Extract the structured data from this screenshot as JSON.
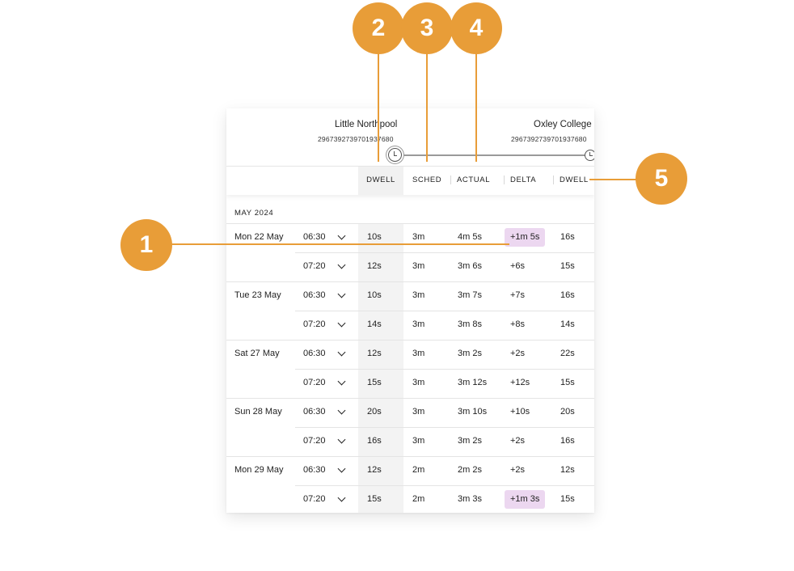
{
  "route": {
    "from": {
      "name": "Little Northpool",
      "id": "2967392739701937680"
    },
    "to": {
      "name": "Oxley College",
      "id": "2967392739701937680"
    }
  },
  "columns": {
    "dwell": "DWELL",
    "sched": "SCHED",
    "actual": "ACTUAL",
    "delta": "DELTA",
    "dwell_next": "DWELL"
  },
  "month": "MAY 2024",
  "callouts": [
    "1",
    "2",
    "3",
    "4",
    "5"
  ],
  "colors": {
    "accent": "#e89d38",
    "delta_highlight": "#ecd7f0"
  },
  "groups": [
    {
      "date": "Mon 22 May",
      "rows": [
        {
          "time": "06:30",
          "dwell": "10s",
          "sched": "3m",
          "actual": "4m 5s",
          "delta": "+1m 5s",
          "highlight": true,
          "dwell_next": "16s"
        },
        {
          "time": "07:20",
          "dwell": "12s",
          "sched": "3m",
          "actual": "3m 6s",
          "delta": "+6s",
          "highlight": false,
          "dwell_next": "15s"
        }
      ]
    },
    {
      "date": "Tue 23 May",
      "rows": [
        {
          "time": "06:30",
          "dwell": "10s",
          "sched": "3m",
          "actual": "3m 7s",
          "delta": "+7s",
          "highlight": false,
          "dwell_next": "16s"
        },
        {
          "time": "07:20",
          "dwell": "14s",
          "sched": "3m",
          "actual": "3m 8s",
          "delta": "+8s",
          "highlight": false,
          "dwell_next": "14s"
        }
      ]
    },
    {
      "date": "Sat 27 May",
      "rows": [
        {
          "time": "06:30",
          "dwell": "12s",
          "sched": "3m",
          "actual": "3m 2s",
          "delta": "+2s",
          "highlight": false,
          "dwell_next": "22s"
        },
        {
          "time": "07:20",
          "dwell": "15s",
          "sched": "3m",
          "actual": "3m 12s",
          "delta": "+12s",
          "highlight": false,
          "dwell_next": "15s"
        }
      ]
    },
    {
      "date": "Sun 28 May",
      "rows": [
        {
          "time": "06:30",
          "dwell": "20s",
          "sched": "3m",
          "actual": "3m 10s",
          "delta": "+10s",
          "highlight": false,
          "dwell_next": "20s"
        },
        {
          "time": "07:20",
          "dwell": "16s",
          "sched": "3m",
          "actual": "3m 2s",
          "delta": "+2s",
          "highlight": false,
          "dwell_next": "16s"
        }
      ]
    },
    {
      "date": "Mon 29 May",
      "rows": [
        {
          "time": "06:30",
          "dwell": "12s",
          "sched": "2m",
          "actual": "2m 2s",
          "delta": "+2s",
          "highlight": false,
          "dwell_next": "12s"
        },
        {
          "time": "07:20",
          "dwell": "15s",
          "sched": "2m",
          "actual": "3m 3s",
          "delta": "+1m 3s",
          "highlight": true,
          "dwell_next": "15s"
        }
      ]
    }
  ]
}
